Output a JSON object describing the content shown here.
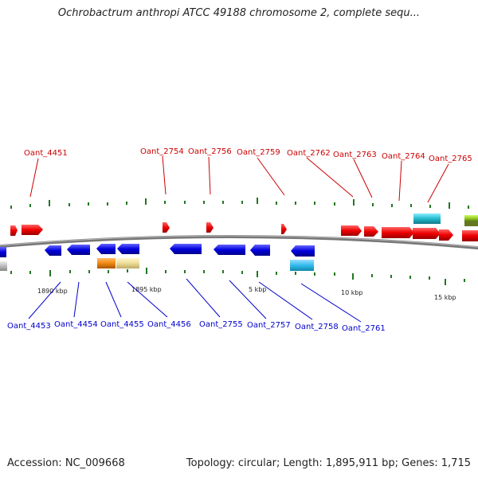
{
  "title": "Ochrobactrum anthropi ATCC 49188 chromosome 2, complete sequ...",
  "footer": {
    "accession": "Accession: NC_009668",
    "summary": "Topology: circular; Length: 1,895,911 bp; Genes: 1,715"
  },
  "top_labels": [
    "Oant_4451",
    "Oant_2754",
    "Oant_2756",
    "Oant_2759",
    "Oant_2762",
    "Oant_2763",
    "Oant_2764",
    "Oant_2765"
  ],
  "bottom_labels": [
    "Oant_4453",
    "Oant_4454",
    "Oant_4455",
    "Oant_4456",
    "Oant_2755",
    "Oant_2757",
    "Oant_2758",
    "Oant_2761"
  ],
  "scale_labels": [
    "1890 kbp",
    "1895 kbp",
    "5 kbp",
    "10 kbp",
    "15 kbp"
  ],
  "colors": {
    "forward_gene": "#ee0000",
    "reverse_gene": "#0000dd",
    "cyan_gene": "#22bbcc",
    "light_cyan_gene": "#33bbee",
    "orange_gene": "#ee8811",
    "khaki_gene": "#eedd99",
    "green_gene": "#99cc22",
    "grey_gene": "#bbbbbb",
    "tick": "#227722",
    "backbone": "#888888"
  }
}
